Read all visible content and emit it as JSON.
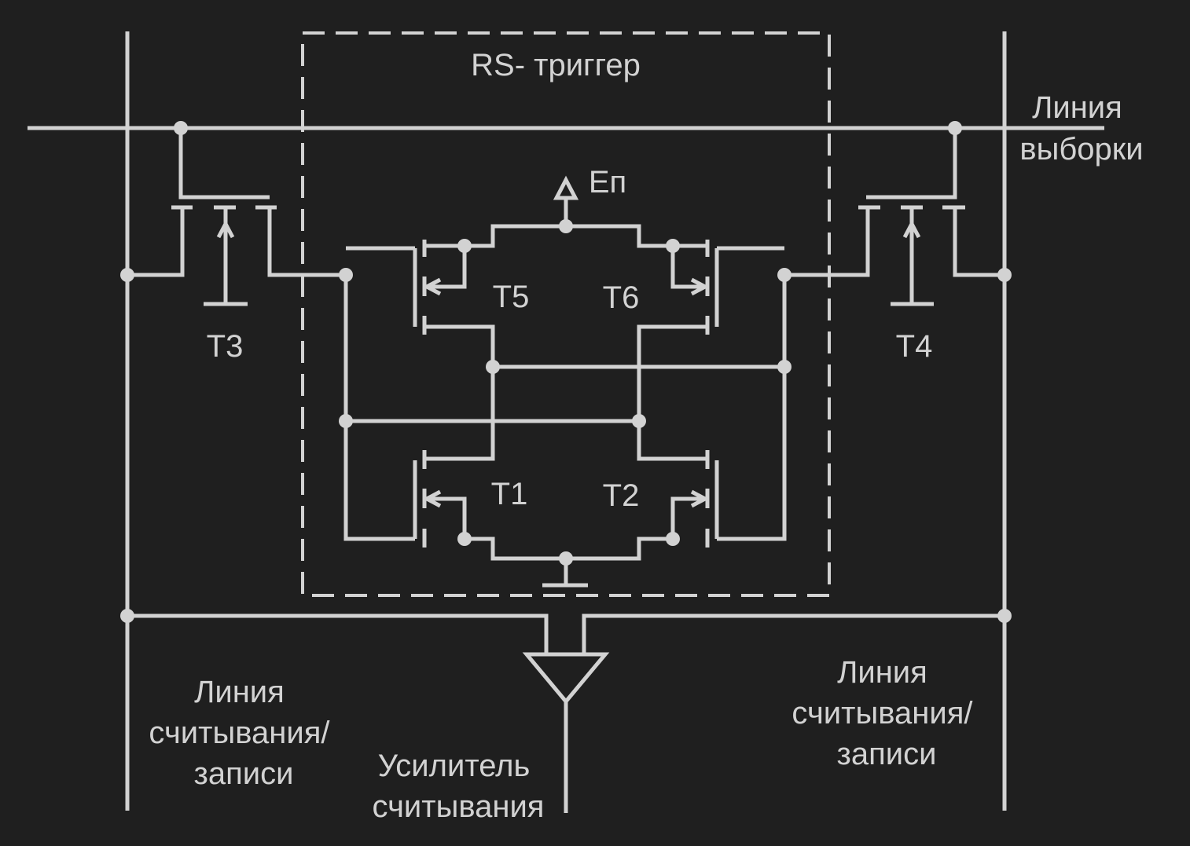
{
  "labels": {
    "rs_trigger": "RS- триггер",
    "select_line": [
      "Линия",
      "выборки"
    ],
    "power": "Eп",
    "t1": "T1",
    "t2": "T2",
    "t3": "T3",
    "t4": "T4",
    "t5": "T5",
    "t6": "T6",
    "rw_line_left": [
      "Линия",
      "считывания/",
      "записи"
    ],
    "rw_line_right": [
      "Линия",
      "считывания/",
      "записи"
    ],
    "sense_amp": [
      "Усилитель",
      "считывания"
    ]
  },
  "colors": {
    "background": "#1f1f1f",
    "line": "#d2d2d2"
  }
}
